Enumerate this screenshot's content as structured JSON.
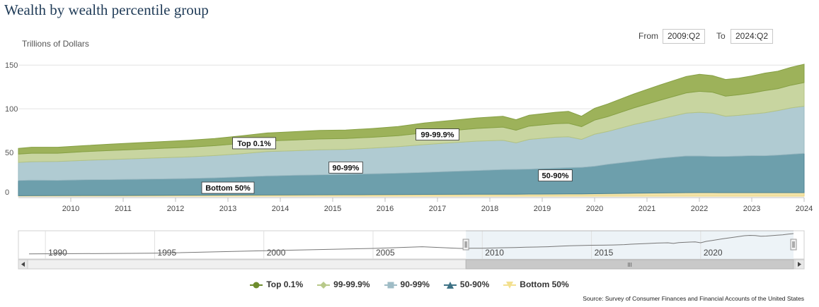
{
  "title": "Wealth by wealth percentile group",
  "range_selector": {
    "from_label": "From",
    "from_value": "2009:Q2",
    "to_label": "To",
    "to_value": "2024:Q2"
  },
  "source": "Source: Survey of Consumer Finances and Financial Accounts of the United States",
  "navigator": {
    "year_labels": [
      "1990",
      "1995",
      "2000",
      "2005",
      "2010",
      "2015",
      "2020"
    ],
    "scroll_grip": "III"
  },
  "colors": {
    "bottom50": "#f3e3a6",
    "p50_90": "#6d9fac",
    "p90_99": "#b0cbd2",
    "p99_999": "#c8d5a0",
    "top01": "#9db25a",
    "grid": "#e3e3e3",
    "axis": "#c0c0c0"
  },
  "chart_data": {
    "type": "area",
    "stacked": true,
    "ylabel": "Trillions of Dollars",
    "ylim": [
      0,
      155
    ],
    "y_ticks": [
      0,
      50,
      100,
      150
    ],
    "xlim": [
      2009.25,
      2024.25
    ],
    "x_ticks": [
      "2010",
      "2011",
      "2012",
      "2013",
      "2014",
      "2015",
      "2016",
      "2017",
      "2018",
      "2019",
      "2020",
      "2021",
      "2022",
      "2023",
      "2024"
    ],
    "grid": true,
    "x": [
      2009.25,
      2009.5,
      2010.0,
      2010.5,
      2011.0,
      2011.5,
      2012.0,
      2012.5,
      2013.0,
      2013.5,
      2014.0,
      2014.5,
      2015.0,
      2015.5,
      2016.0,
      2016.5,
      2017.0,
      2017.5,
      2018.0,
      2018.5,
      2018.75,
      2019.0,
      2019.5,
      2019.75,
      2020.0,
      2020.25,
      2020.5,
      2021.0,
      2021.5,
      2022.0,
      2022.25,
      2022.5,
      2022.75,
      2023.0,
      2023.25,
      2023.5,
      2023.75,
      2024.0,
      2024.25
    ],
    "series": [
      {
        "name": "Bottom 50%",
        "values": [
          0.5,
          0.6,
          0.7,
          0.8,
          0.8,
          0.9,
          1.0,
          1.1,
          1.2,
          1.3,
          1.4,
          1.5,
          1.6,
          1.7,
          1.8,
          1.9,
          2.0,
          2.1,
          2.2,
          2.3,
          2.3,
          2.4,
          2.5,
          2.6,
          2.6,
          2.8,
          3.0,
          3.4,
          3.7,
          4.0,
          4.1,
          4.1,
          4.0,
          4.0,
          4.0,
          4.0,
          4.0,
          4.0,
          4.0
        ]
      },
      {
        "name": "50-90%",
        "values": [
          17.5,
          17.7,
          17.5,
          18.0,
          18.2,
          18.5,
          18.8,
          19.2,
          19.8,
          20.8,
          21.8,
          22.4,
          22.9,
          23.3,
          23.8,
          24.4,
          25.2,
          26.2,
          27.2,
          28.2,
          28.4,
          28.6,
          29.6,
          30.1,
          30.4,
          31.5,
          33.5,
          36.6,
          39.8,
          42.0,
          41.9,
          41.4,
          41.5,
          41.9,
          42.4,
          42.3,
          43.0,
          44.0,
          45.0
        ]
      },
      {
        "name": "90-99%",
        "values": [
          20.7,
          21.2,
          21.5,
          22.2,
          23.0,
          23.6,
          24.2,
          24.7,
          25.5,
          26.4,
          27.8,
          28.1,
          28.5,
          28.6,
          29.4,
          30.4,
          31.8,
          32.7,
          33.6,
          33.5,
          30.3,
          34.0,
          35.4,
          35.3,
          32.0,
          36.7,
          37.5,
          42.0,
          45.0,
          49.0,
          50.0,
          49.5,
          46.0,
          46.6,
          47.6,
          49.2,
          51.0,
          53.0,
          54.0
        ]
      },
      {
        "name": "99-99.9%",
        "values": [
          9.5,
          9.7,
          9.5,
          9.9,
          10.3,
          10.5,
          10.8,
          11.0,
          11.3,
          11.8,
          12.1,
          12.3,
          12.5,
          12.4,
          12.4,
          12.6,
          13.5,
          14.0,
          14.5,
          15.0,
          14.5,
          15.2,
          15.5,
          15.5,
          14.5,
          16.0,
          17.0,
          19.0,
          21.3,
          23.2,
          24.0,
          24.0,
          23.0,
          23.5,
          24.0,
          25.3,
          25.0,
          26.0,
          27.0
        ]
      },
      {
        "name": "Top 0.1%",
        "values": [
          6.5,
          6.8,
          6.8,
          6.9,
          7.2,
          7.5,
          7.7,
          7.9,
          8.2,
          8.7,
          9.2,
          9.5,
          9.8,
          9.7,
          10.0,
          10.4,
          11.2,
          11.6,
          12.0,
          12.4,
          12.0,
          12.4,
          13.0,
          13.5,
          12.0,
          13.5,
          14.5,
          16.0,
          17.5,
          18.8,
          19.5,
          19.0,
          19.0,
          19.0,
          19.6,
          20.0,
          20.0,
          20.5,
          21.0
        ]
      }
    ],
    "annotations": [
      {
        "text": "Top 0.1%",
        "series": "Top 0.1%"
      },
      {
        "text": "99-99.9%",
        "series": "99-99.9%"
      },
      {
        "text": "90-99%",
        "series": "90-99%"
      },
      {
        "text": "50-90%",
        "series": "50-90%"
      },
      {
        "text": "Bottom 50%",
        "series": "Bottom 50%"
      }
    ],
    "legend": {
      "placement": "bottom",
      "items": [
        "Top 0.1%",
        "99-99.9%",
        "90-99%",
        "50-90%",
        "Bottom 50%"
      ]
    }
  }
}
